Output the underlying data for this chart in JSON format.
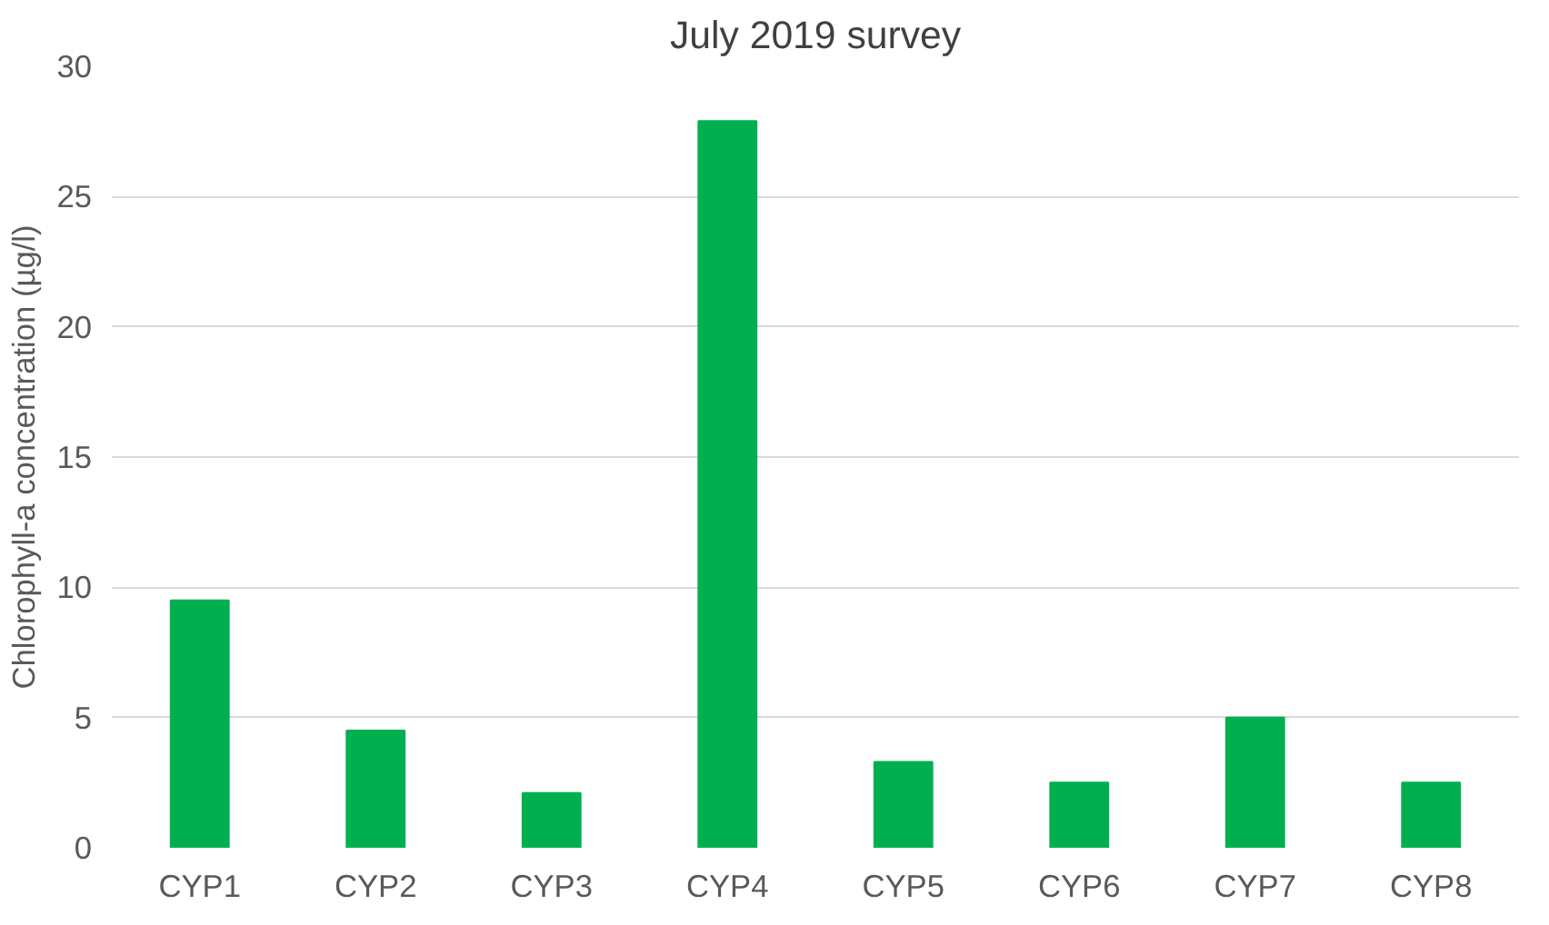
{
  "chart_data": {
    "type": "bar",
    "title": "July 2019 survey",
    "ylabel": "Chlorophyll-a concentration (µg/l)",
    "categories": [
      "CYP1",
      "CYP2",
      "CYP3",
      "CYP4",
      "CYP5",
      "CYP6",
      "CYP7",
      "CYP8"
    ],
    "values": [
      9.5,
      4.5,
      2.1,
      27.9,
      3.3,
      2.5,
      5.0,
      2.5
    ],
    "color": "#00b050",
    "ylim": [
      0,
      30
    ],
    "yticks": [
      0,
      5,
      10,
      15,
      20,
      25,
      30
    ],
    "grid": "y"
  }
}
